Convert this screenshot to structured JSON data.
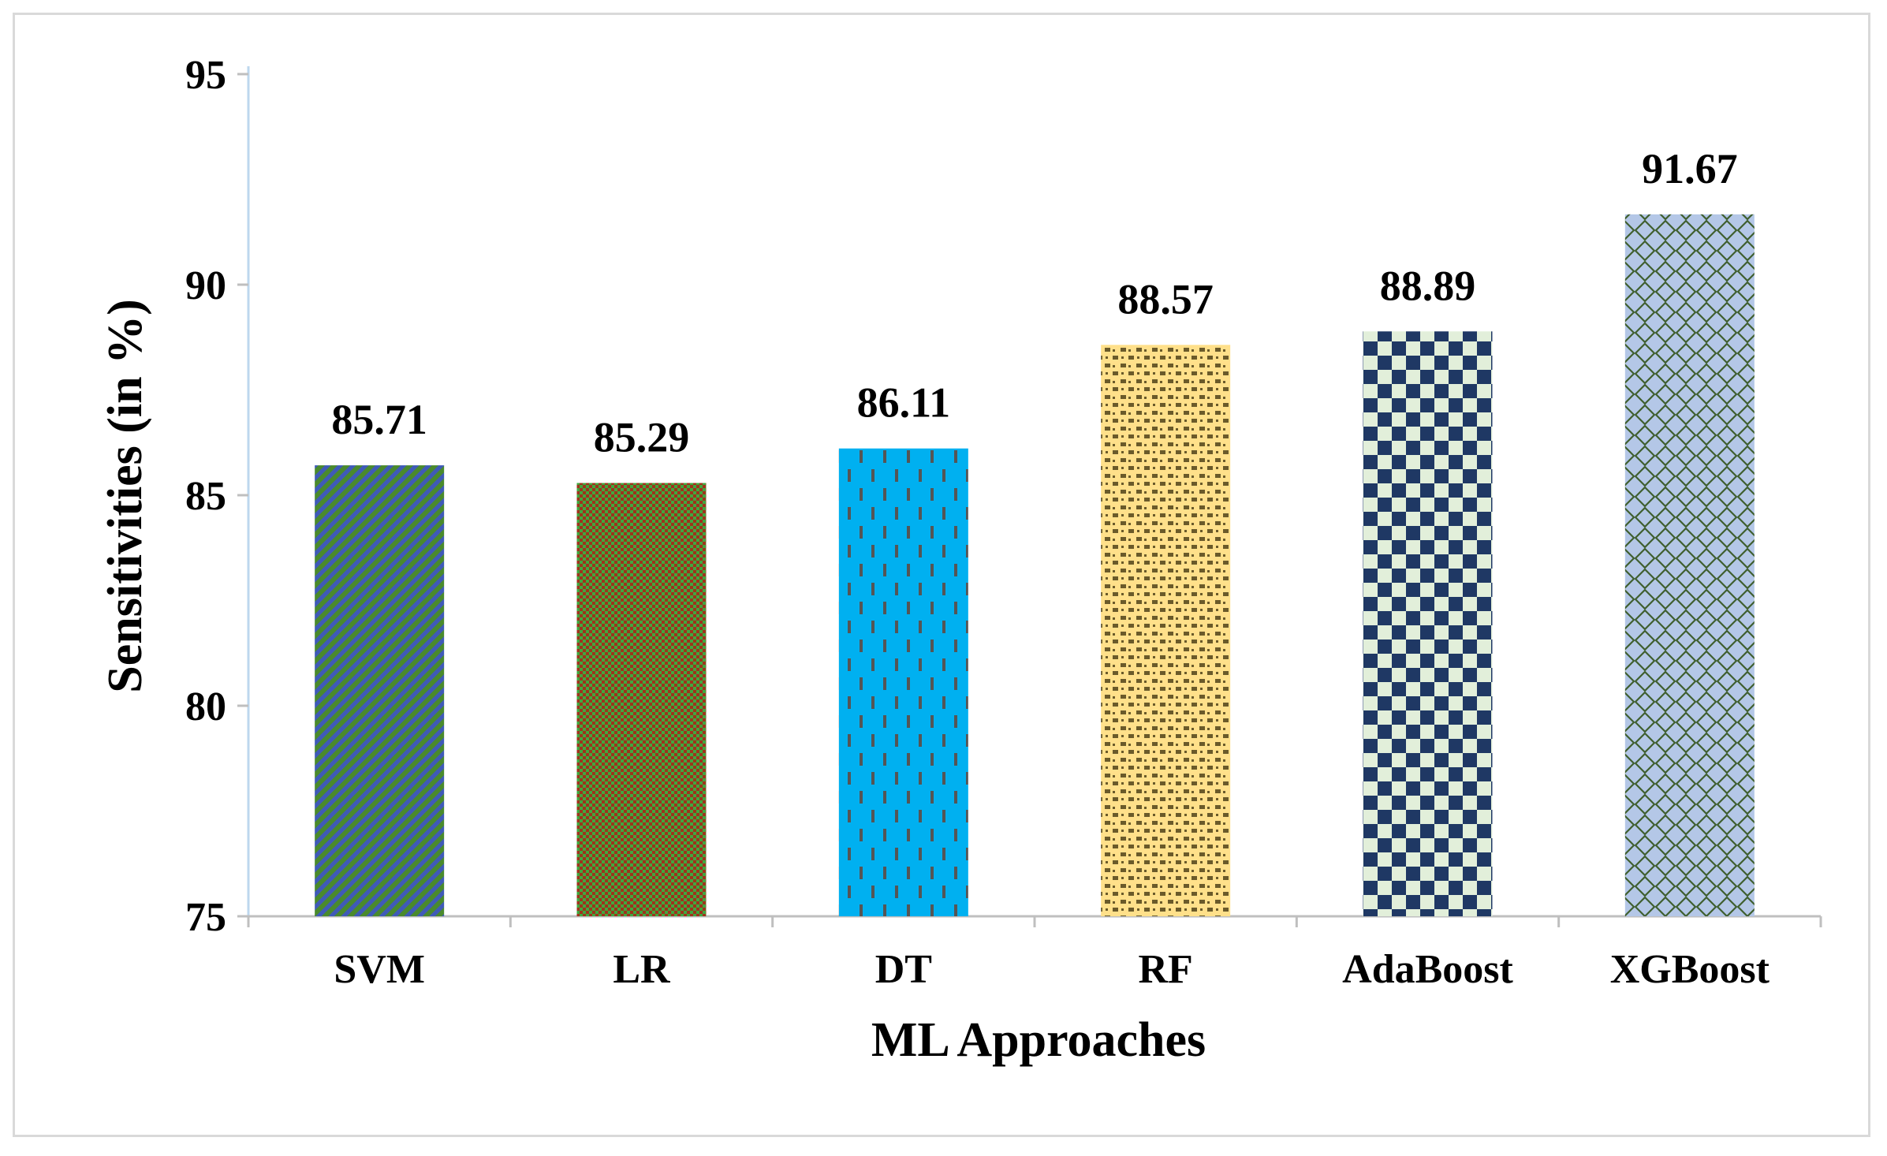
{
  "chart_data": {
    "type": "bar",
    "title": "",
    "xlabel": "ML Approaches",
    "ylabel": "Sensitivities (in %)",
    "ylim": [
      75,
      95
    ],
    "yticks": [
      75,
      80,
      85,
      90,
      95
    ],
    "ytick_labels": [
      "75",
      "80",
      "85",
      "90",
      "95"
    ],
    "grid": false,
    "legend": "none",
    "categories": [
      "SVM",
      "LR",
      "DT",
      "RF",
      "AdaBoost",
      "XGBoost"
    ],
    "values": [
      85.71,
      85.29,
      86.11,
      88.57,
      88.89,
      91.67
    ],
    "value_labels": [
      "85.71",
      "85.29",
      "86.11",
      "88.57",
      "88.89",
      "91.67"
    ],
    "bar_styles": [
      {
        "pattern": "diagonal-stripes",
        "fg": "#4a8a2c",
        "bg": "#3f5ab8"
      },
      {
        "pattern": "small-grid",
        "fg": "#3fa83f",
        "bg": "#a0321c"
      },
      {
        "pattern": "dashed-vertical",
        "fg": "#555555",
        "bg": "#00b0f0"
      },
      {
        "pattern": "small-bricks",
        "fg": "#6a5a2a",
        "bg": "#ffe08a"
      },
      {
        "pattern": "checkerboard",
        "fg": "#1f3864",
        "bg": "#e2efda"
      },
      {
        "pattern": "diamond-lattice",
        "fg": "#3f5f2f",
        "bg": "#b4c7e7"
      }
    ]
  }
}
